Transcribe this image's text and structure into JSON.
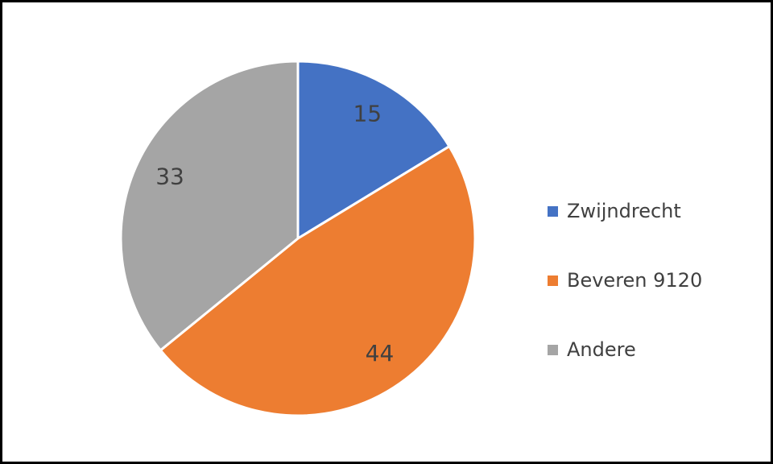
{
  "chart_data": {
    "type": "pie",
    "categories": [
      "Zwijndrecht",
      "Beveren 9120",
      "Andere"
    ],
    "values": [
      15,
      44,
      33
    ],
    "colors": [
      "#4472c4",
      "#ed7d31",
      "#a5a5a5"
    ],
    "legend": "right"
  }
}
